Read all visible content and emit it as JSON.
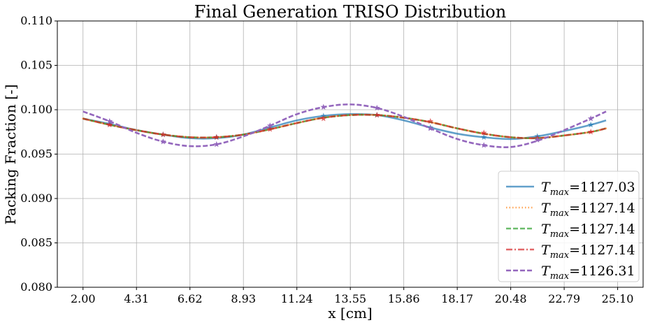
{
  "chart_data": {
    "type": "line",
    "title": "Final Generation TRISO Distribution",
    "xlabel": "x [cm]",
    "ylabel": "Packing Fraction [-]",
    "xlim": [
      2.0,
      25.1
    ],
    "ylim": [
      0.08,
      0.11
    ],
    "xticks": [
      "2.00",
      "4.31",
      "6.62",
      "8.93",
      "11.24",
      "13.55",
      "15.86",
      "18.17",
      "20.48",
      "22.79",
      "25.10"
    ],
    "xtick_values": [
      2.0,
      4.31,
      6.62,
      8.93,
      11.24,
      13.55,
      15.86,
      18.17,
      20.48,
      22.79,
      25.1
    ],
    "yticks": [
      "0.080",
      "0.085",
      "0.090",
      "0.095",
      "0.100",
      "0.105",
      "0.110"
    ],
    "ytick_values": [
      0.08,
      0.085,
      0.09,
      0.095,
      0.1,
      0.105,
      0.11
    ],
    "grid": true,
    "legend_position": "lower-right",
    "series": [
      {
        "legend_prefix": "T",
        "legend_sub": "max",
        "legend_value": "=1127.03",
        "color": "#1f77b4",
        "dash": "solid",
        "opacity": 0.7,
        "x": [
          2.0,
          3.15,
          4.31,
          5.46,
          6.62,
          7.77,
          8.93,
          10.08,
          11.24,
          12.39,
          13.55,
          14.7,
          15.86,
          17.01,
          18.17,
          19.32,
          20.48,
          21.63,
          22.79,
          23.94,
          24.6
        ],
        "y": [
          0.099,
          0.0984,
          0.0977,
          0.0972,
          0.0968,
          0.0968,
          0.0972,
          0.098,
          0.0988,
          0.0993,
          0.0995,
          0.0994,
          0.0988,
          0.098,
          0.0973,
          0.0969,
          0.0967,
          0.097,
          0.0976,
          0.0983,
          0.0988
        ],
        "markers": [
          [
            3.15,
            0.0984
          ],
          [
            5.46,
            0.0972
          ],
          [
            7.77,
            0.0969
          ],
          [
            10.08,
            0.098
          ],
          [
            12.39,
            0.0993
          ],
          [
            14.7,
            0.0994
          ],
          [
            17.01,
            0.098
          ],
          [
            19.32,
            0.0969
          ],
          [
            21.63,
            0.097
          ],
          [
            23.94,
            0.0983
          ]
        ]
      },
      {
        "legend_prefix": "T",
        "legend_sub": "max",
        "legend_value": "=1127.14",
        "color": "#ff7f0e",
        "dash": "dotted",
        "opacity": 0.7,
        "x": [
          2.0,
          3.15,
          4.31,
          5.46,
          6.62,
          7.77,
          8.93,
          10.08,
          11.24,
          12.39,
          13.55,
          14.7,
          15.86,
          17.01,
          18.17,
          19.32,
          20.48,
          21.63,
          22.79,
          23.94,
          24.6
        ],
        "y": [
          0.099,
          0.0983,
          0.0977,
          0.0972,
          0.0969,
          0.0969,
          0.0972,
          0.0978,
          0.0985,
          0.0991,
          0.0994,
          0.0994,
          0.0991,
          0.0986,
          0.0979,
          0.0973,
          0.0969,
          0.0968,
          0.0971,
          0.0975,
          0.0979
        ],
        "markers": []
      },
      {
        "legend_prefix": "T",
        "legend_sub": "max",
        "legend_value": "=1127.14",
        "color": "#2ca02c",
        "dash": "dashed",
        "opacity": 0.7,
        "x": [
          2.0,
          3.15,
          4.31,
          5.46,
          6.62,
          7.77,
          8.93,
          10.08,
          11.24,
          12.39,
          13.55,
          14.7,
          15.86,
          17.01,
          18.17,
          19.32,
          20.48,
          21.63,
          22.79,
          23.94,
          24.6
        ],
        "y": [
          0.099,
          0.0983,
          0.0977,
          0.0972,
          0.0969,
          0.0969,
          0.0972,
          0.0978,
          0.0985,
          0.0991,
          0.0994,
          0.0994,
          0.0991,
          0.0986,
          0.0979,
          0.0973,
          0.0969,
          0.0968,
          0.0971,
          0.0975,
          0.0979
        ],
        "markers": []
      },
      {
        "legend_prefix": "T",
        "legend_sub": "max",
        "legend_value": "=1127.14",
        "color": "#d62728",
        "dash": "dashdot",
        "opacity": 0.7,
        "x": [
          2.0,
          3.15,
          4.31,
          5.46,
          6.62,
          7.77,
          8.93,
          10.08,
          11.24,
          12.39,
          13.55,
          14.7,
          15.86,
          17.01,
          18.17,
          19.32,
          20.48,
          21.63,
          22.79,
          23.94,
          24.6
        ],
        "y": [
          0.099,
          0.0983,
          0.0977,
          0.0972,
          0.0969,
          0.0969,
          0.0972,
          0.0978,
          0.0985,
          0.0991,
          0.0994,
          0.0994,
          0.0991,
          0.0986,
          0.0979,
          0.0973,
          0.0969,
          0.0968,
          0.0971,
          0.0975,
          0.0979
        ],
        "markers": [
          [
            3.15,
            0.0983
          ],
          [
            5.46,
            0.0972
          ],
          [
            7.77,
            0.0969
          ],
          [
            10.08,
            0.0978
          ],
          [
            12.39,
            0.099
          ],
          [
            14.7,
            0.0994
          ],
          [
            17.01,
            0.0987
          ],
          [
            19.32,
            0.0974
          ],
          [
            21.63,
            0.0968
          ],
          [
            23.94,
            0.0975
          ]
        ]
      },
      {
        "legend_prefix": "T",
        "legend_sub": "max",
        "legend_value": "=1126.31",
        "color": "#9467bd",
        "dash": "dashed",
        "opacity": 1.0,
        "x": [
          2.0,
          3.15,
          4.31,
          5.46,
          6.62,
          7.77,
          8.93,
          10.08,
          11.24,
          12.39,
          13.55,
          14.7,
          15.86,
          17.01,
          18.17,
          19.32,
          20.48,
          21.63,
          22.79,
          23.94,
          24.6
        ],
        "y": [
          0.0998,
          0.0987,
          0.0974,
          0.0964,
          0.0959,
          0.0961,
          0.097,
          0.0982,
          0.0995,
          0.1003,
          0.1006,
          0.1002,
          0.0992,
          0.0979,
          0.0967,
          0.096,
          0.0958,
          0.0965,
          0.0977,
          0.099,
          0.0998
        ],
        "markers": [
          [
            3.15,
            0.0987
          ],
          [
            5.46,
            0.0964
          ],
          [
            7.77,
            0.0961
          ],
          [
            10.08,
            0.0982
          ],
          [
            12.39,
            0.1003
          ],
          [
            14.7,
            0.1002
          ],
          [
            17.01,
            0.0979
          ],
          [
            19.32,
            0.096
          ],
          [
            21.63,
            0.0966
          ],
          [
            23.94,
            0.099
          ]
        ]
      }
    ]
  }
}
